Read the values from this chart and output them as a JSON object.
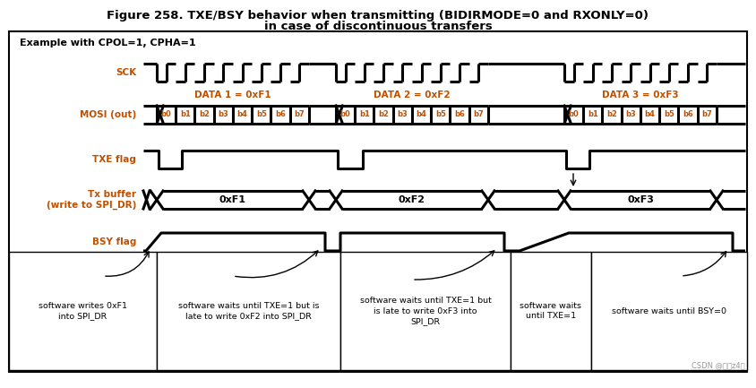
{
  "title_line1": "Figure 258. TXE/BSY behavior when transmitting (BIDIRMODE=0 and RXONLY=0)",
  "title_line2": "in case of discontinuous transfers",
  "subtitle": "Example with CPOL=1, CPHA=1",
  "bit_labels": [
    "b0",
    "b1",
    "b2",
    "b3",
    "b4",
    "b5",
    "b6",
    "b7"
  ],
  "data_labels": [
    "DATA 1 = 0xF1",
    "DATA 2 = 0xF2",
    "DATA 3 = 0xF3"
  ],
  "tx_values": [
    "0xF1",
    "0xF2",
    "0xF3"
  ],
  "bottom_texts": [
    "software writes 0xF1\ninto SPI_DR",
    "software waits until TXE=1 but is\nlate to write 0xF2 into SPI_DR",
    "software waits until TXE=1 but\nis late to write 0xF3 into\nSPI_DR",
    "software waits\nuntil TXE=1",
    "software waits until BSY=0"
  ],
  "watermark": "CSDN @佑妈z4绿",
  "bg_color": "#ffffff",
  "data_color": "#c05000",
  "signal_label_color": "#c05000"
}
